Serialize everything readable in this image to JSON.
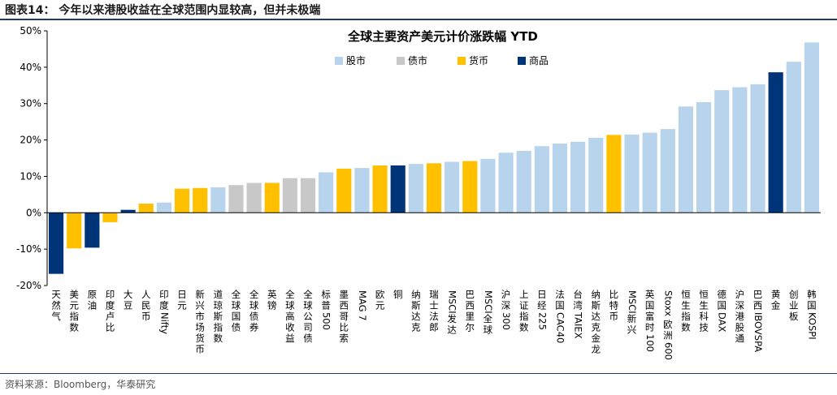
{
  "figure": {
    "title": "图表14：  今年以来港股收益在全球范围内显较高，但并未极端",
    "source": "资料来源：Bloomberg，华泰研究"
  },
  "colors": {
    "股市": "#b8d3ec",
    "债市": "#c8c8c8",
    "货币": "#ffc000",
    "商品": "#003478"
  },
  "chart_data": {
    "type": "bar",
    "title": "全球主要资产美元计价涨跌幅 YTD",
    "xlabel": "",
    "ylabel": "",
    "ylim": [
      -20,
      50
    ],
    "yticks": [
      -20,
      -10,
      0,
      10,
      20,
      30,
      40,
      50
    ],
    "ytick_labels": [
      "-20%",
      "-10%",
      "0%",
      "10%",
      "20%",
      "30%",
      "40%",
      "50%"
    ],
    "grid": false,
    "legend_position": "top-center",
    "legend": [
      "股市",
      "债市",
      "货币",
      "商品"
    ],
    "categories": [
      "天然气",
      "美元指数",
      "原油",
      "印度卢比",
      "大豆",
      "人民币",
      "印度Nifty",
      "日元",
      "新兴市场货币",
      "道琼斯指数",
      "全球国债",
      "全球债券",
      "英镑",
      "全球高收益",
      "全球公司债",
      "标普500",
      "墨西哥比索",
      "MAG 7",
      "欧元",
      "铜",
      "纳斯达克",
      "瑞士法郎",
      "MSCI发达",
      "巴西里尔",
      "MSCI全球",
      "沪深300",
      "上证指数",
      "日经225",
      "法国CAC40",
      "台湾TAIEX",
      "纳斯达克金龙",
      "比特币",
      "MSCI新兴",
      "英国富时100",
      "Stoxx欧洲600",
      "恒生指数",
      "恒生科技",
      "德国DAX",
      "沪深港股通",
      "巴西IBOVSPA",
      "黄金",
      "创业板",
      "韩国KOSPI"
    ],
    "values": [
      -16.8,
      -9.8,
      -9.6,
      -2.6,
      0.8,
      2.5,
      2.8,
      6.6,
      6.8,
      7.0,
      7.6,
      8.2,
      8.2,
      9.5,
      9.5,
      11.1,
      12.1,
      12.3,
      13.0,
      13.0,
      13.4,
      13.6,
      14.0,
      14.2,
      14.8,
      16.5,
      17.0,
      18.3,
      19.0,
      19.5,
      20.6,
      21.4,
      21.5,
      22.0,
      23.0,
      29.2,
      30.4,
      33.7,
      34.5,
      35.3,
      38.6,
      41.5,
      46.8
    ],
    "asset_classes": [
      "商品",
      "货币",
      "商品",
      "货币",
      "商品",
      "货币",
      "股市",
      "货币",
      "货币",
      "股市",
      "债市",
      "债市",
      "货币",
      "债市",
      "债市",
      "股市",
      "货币",
      "股市",
      "货币",
      "商品",
      "股市",
      "货币",
      "股市",
      "货币",
      "股市",
      "股市",
      "股市",
      "股市",
      "股市",
      "股市",
      "股市",
      "货币",
      "股市",
      "股市",
      "股市",
      "股市",
      "股市",
      "股市",
      "股市",
      "股市",
      "商品",
      "股市",
      "股市"
    ]
  }
}
